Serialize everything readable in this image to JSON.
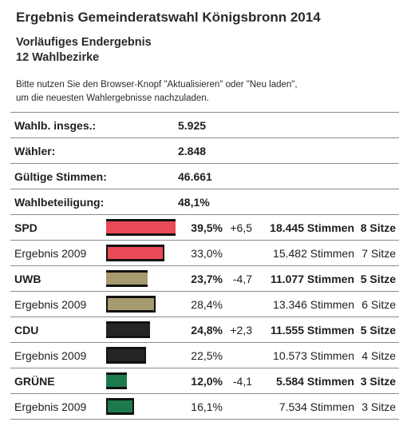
{
  "title": "Ergebnis Gemeinderatswahl Königsbronn 2014",
  "subtitle_1": "Vorläufiges Endergebnis",
  "subtitle_2": "12 Wahlbezirke",
  "notice_line_1": "Bitte nutzen Sie den Browser-Knopf \"Aktualisieren\" oder \"Neu laden\",",
  "notice_line_2": "um die neuesten Wahlergebnisse nachzuladen.",
  "summary": [
    {
      "label": "Wahlb. insges.:",
      "value": "5.925"
    },
    {
      "label": "Wähler:",
      "value": "2.848"
    },
    {
      "label": "Gültige Stimmen:",
      "value": "46.661"
    },
    {
      "label": "Wahlbeteiligung:",
      "value": "48,1%"
    }
  ],
  "parties": [
    {
      "name": "SPD",
      "color": "#e84a56",
      "current": {
        "pct": "39,5%",
        "pct_value": 39.5,
        "diff": "+6,5",
        "votes": "18.445 Stimmen",
        "seats": "8 Sitze"
      },
      "previous": {
        "label": "Ergebnis 2009",
        "pct": "33,0%",
        "pct_value": 33.0,
        "votes": "15.482 Stimmen",
        "seats": "7 Sitze"
      }
    },
    {
      "name": "UWB",
      "color": "#a69a6e",
      "current": {
        "pct": "23,7%",
        "pct_value": 23.7,
        "diff": "-4,7",
        "votes": "11.077 Stimmen",
        "seats": "5 Sitze"
      },
      "previous": {
        "label": "Ergebnis 2009",
        "pct": "28,4%",
        "pct_value": 28.4,
        "votes": "13.346 Stimmen",
        "seats": "6 Sitze"
      }
    },
    {
      "name": "CDU",
      "color": "#252525",
      "current": {
        "pct": "24,8%",
        "pct_value": 24.8,
        "diff": "+2,3",
        "votes": "11.555 Stimmen",
        "seats": "5 Sitze"
      },
      "previous": {
        "label": "Ergebnis 2009",
        "pct": "22,5%",
        "pct_value": 22.5,
        "votes": "10.573 Stimmen",
        "seats": "4 Sitze"
      }
    },
    {
      "name": "GRÜNE",
      "color": "#1c7a4c",
      "current": {
        "pct": "12,0%",
        "pct_value": 12.0,
        "diff": "-4,1",
        "votes": "5.584 Stimmen",
        "seats": "3 Sitze"
      },
      "previous": {
        "label": "Ergebnis 2009",
        "pct": "16,1%",
        "pct_value": 16.1,
        "votes": "7.534 Stimmen",
        "seats": "3 Sitze"
      }
    }
  ]
}
